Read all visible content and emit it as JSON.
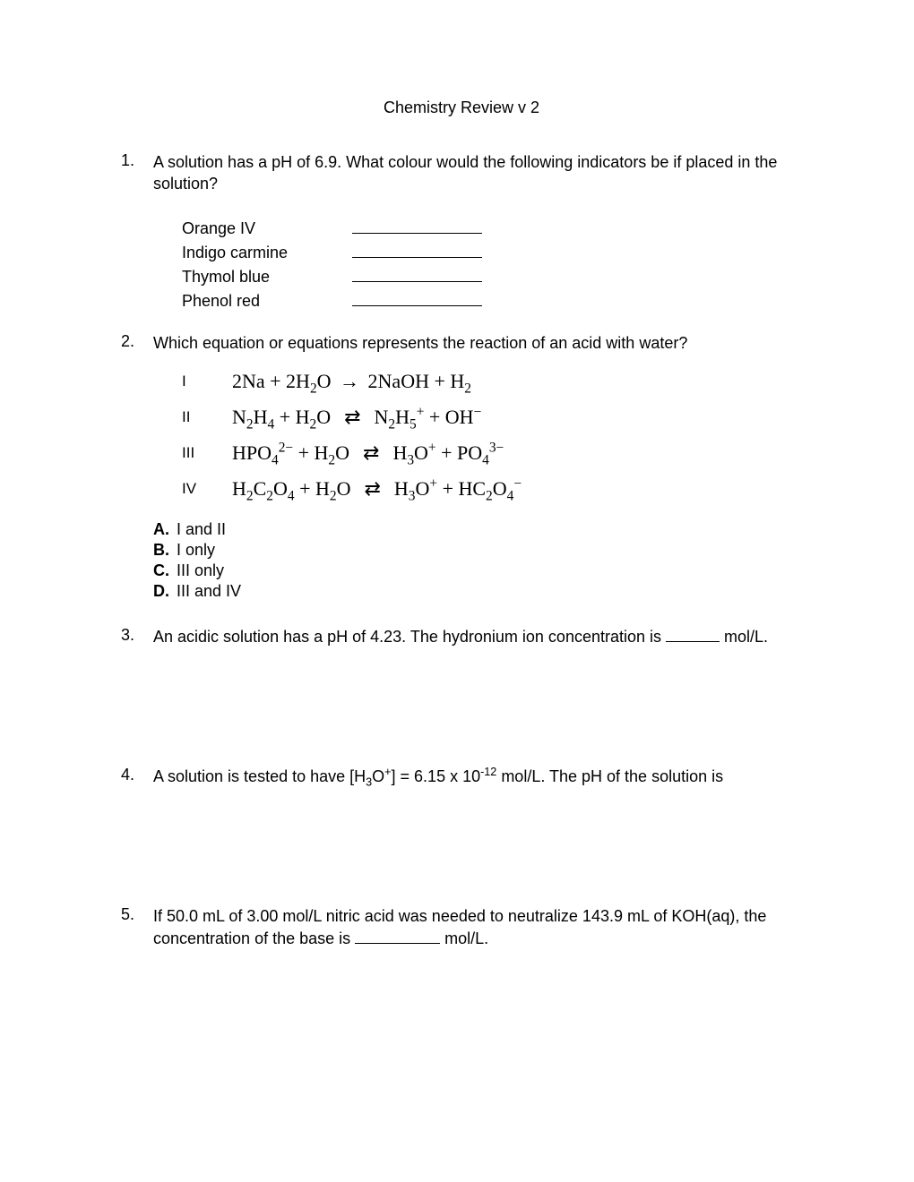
{
  "title": "Chemistry Review v 2",
  "q1": {
    "num": "1.",
    "text": "A solution has a pH of 6.9. What colour would the following indicators be if placed in the solution?",
    "indicators": [
      "Orange IV",
      "Indigo carmine",
      "Thymol blue",
      "Phenol red"
    ]
  },
  "q2": {
    "num": "2.",
    "text": "Which equation or equations represents the reaction of an acid with water?",
    "eqns": {
      "I": {
        "label": "I"
      },
      "II": {
        "label": "II"
      },
      "III": {
        "label": "III"
      },
      "IV": {
        "label": "IV"
      }
    },
    "options": [
      {
        "letter": "A.",
        "text": "I and II"
      },
      {
        "letter": "B.",
        "text": "I only"
      },
      {
        "letter": "C.",
        "text": "III only"
      },
      {
        "letter": "D.",
        "text": "III and IV"
      }
    ]
  },
  "q3": {
    "num": "3.",
    "text_before": "An acidic solution has a pH of 4.23. The hydronium ion concentration is ",
    "text_after": " mol/L."
  },
  "q4": {
    "num": "4.",
    "text_before": "A solution is tested to have [H",
    "text_mid": "] = 6.15 x 10",
    "text_after": " mol/L. The pH of the solution is",
    "sub1": "3",
    "sup1": "+",
    "exp": "-12",
    "species": "O"
  },
  "q5": {
    "num": "5.",
    "text_before": "If 50.0 mL of 3.00 mol/L nitric acid was needed to neutralize 143.9 mL of KOH(aq), the concentration of the base is ",
    "text_after": " mol/L."
  }
}
